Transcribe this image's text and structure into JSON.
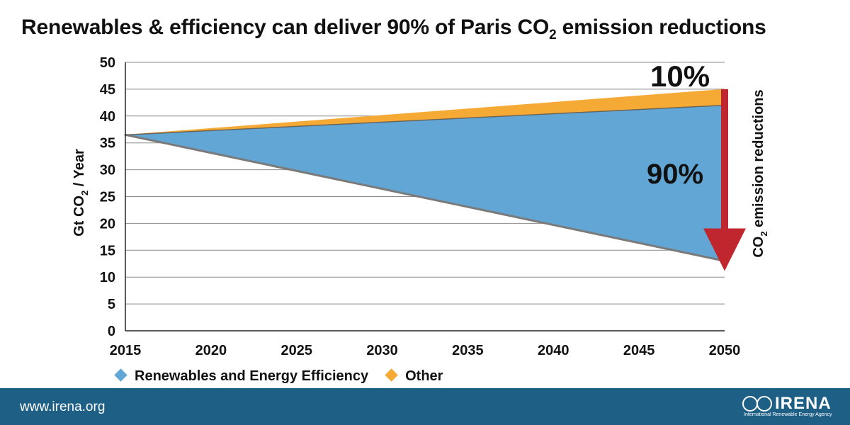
{
  "header": {
    "title_pre": "Renewables & efficiency can deliver 90% of Paris CO",
    "title_sub": "2",
    "title_post": " emission reductions"
  },
  "chart_data": {
    "type": "area",
    "title": "Renewables & efficiency can deliver 90% of Paris CO2 emission reductions",
    "x": [
      2015,
      2050
    ],
    "xticks": [
      "2015",
      "2020",
      "2025",
      "2030",
      "2035",
      "2040",
      "2045",
      "2050"
    ],
    "xlim": [
      2015,
      2050
    ],
    "ylim": [
      0,
      50
    ],
    "yticks": [
      "0",
      "5",
      "10",
      "15",
      "20",
      "25",
      "30",
      "35",
      "40",
      "45",
      "50"
    ],
    "ylabel": {
      "pre": "Gt CO",
      "sub": "2",
      "post": " / Year"
    },
    "reference_line": [
      36.5,
      45
    ],
    "target_line": [
      36.5,
      13
    ],
    "series": [
      {
        "name": "Renewables and Energy Efficiency",
        "color": "#62a6d6",
        "lower": [
          36.5,
          13
        ],
        "upper": [
          36.5,
          42
        ]
      },
      {
        "name": "Other",
        "color": "#f6aa36",
        "lower": [
          36.5,
          42
        ],
        "upper": [
          36.5,
          45
        ]
      }
    ],
    "annotations": {
      "pct_other": "10%",
      "pct_renewables": "90%",
      "arrow_label": {
        "pre": "CO",
        "sub": "2",
        "post": " emission reductions"
      },
      "arrow_color": "#c0262d"
    },
    "grid": "horizontal",
    "legend_position": "bottom-left"
  },
  "footer": {
    "url": "www.irena.org",
    "logo_text": "IRENA",
    "logo_subtext": "International Renewable Energy Agency"
  }
}
